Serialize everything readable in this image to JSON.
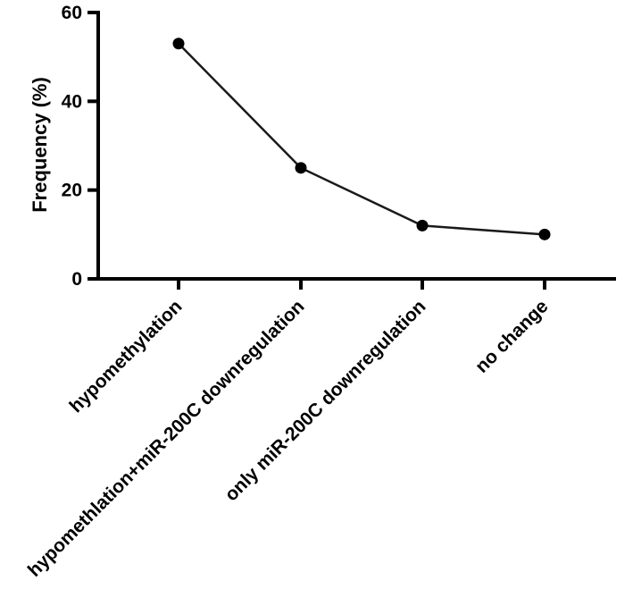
{
  "chart_data": {
    "type": "line",
    "title": "",
    "xlabel": "",
    "ylabel": "Frequency (%)",
    "categories": [
      "hypomethylation",
      "hypomethlation+miR-200C downregulation",
      "only miR-200C downregulation",
      "no change"
    ],
    "series": [
      {
        "values": [
          53,
          25,
          12,
          10
        ]
      }
    ],
    "ylim": [
      0,
      60
    ],
    "yticks": [
      "0",
      "20",
      "40",
      "60"
    ],
    "grid": false,
    "legend": "none",
    "colors": {
      "line": "#1a1a1a",
      "marker": "#000000",
      "axis": "#000000"
    }
  }
}
